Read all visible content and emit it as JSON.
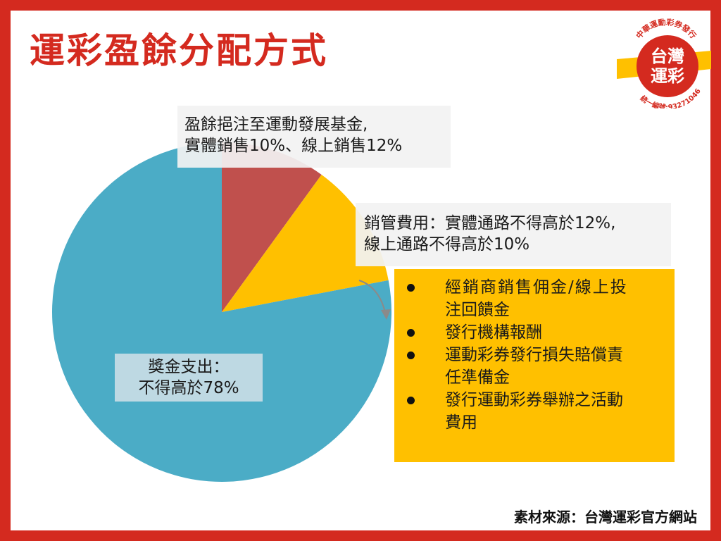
{
  "page": {
    "title": "運彩盈餘分配方式",
    "source": "素材來源：台灣運彩官方網站"
  },
  "logo": {
    "top_text": "中華運動彩券發行",
    "main_line1": "台灣",
    "main_line2": "運彩",
    "bottom_text": "統一編號:93271046"
  },
  "colors": {
    "frame": "#d42a1f",
    "fund": "#c0504d",
    "management": "#ffc000",
    "prize": "#4bacc6"
  },
  "chart_data": {
    "type": "pie",
    "start_angle_deg": 0,
    "slices": [
      {
        "key": "fund",
        "value": 10,
        "color": "#c0504d"
      },
      {
        "key": "management",
        "value": 12,
        "color": "#ffc000"
      },
      {
        "key": "prize",
        "value": 78,
        "color": "#4bacc6"
      }
    ],
    "labels": {
      "fund": {
        "line1": "盈餘挹注至運動發展基金,",
        "line2": "實體銷售10%、線上銷售12%"
      },
      "management": {
        "line1": "銷管費用：實體通路不得高於12%,",
        "line2": "線上通路不得高於10%"
      },
      "prize": {
        "line1": "獎金支出：",
        "line2": "不得高於78%"
      }
    },
    "management_items": [
      {
        "line1": "經銷商銷售佣金/線上投",
        "line2": "注回饋金"
      },
      {
        "line1": "發行機構報酬",
        "line2": ""
      },
      {
        "line1": "運動彩券發行損失賠償責",
        "line2": "任準備金"
      },
      {
        "line1": "發行運動彩券舉辦之活動",
        "line2": "費用"
      }
    ]
  }
}
